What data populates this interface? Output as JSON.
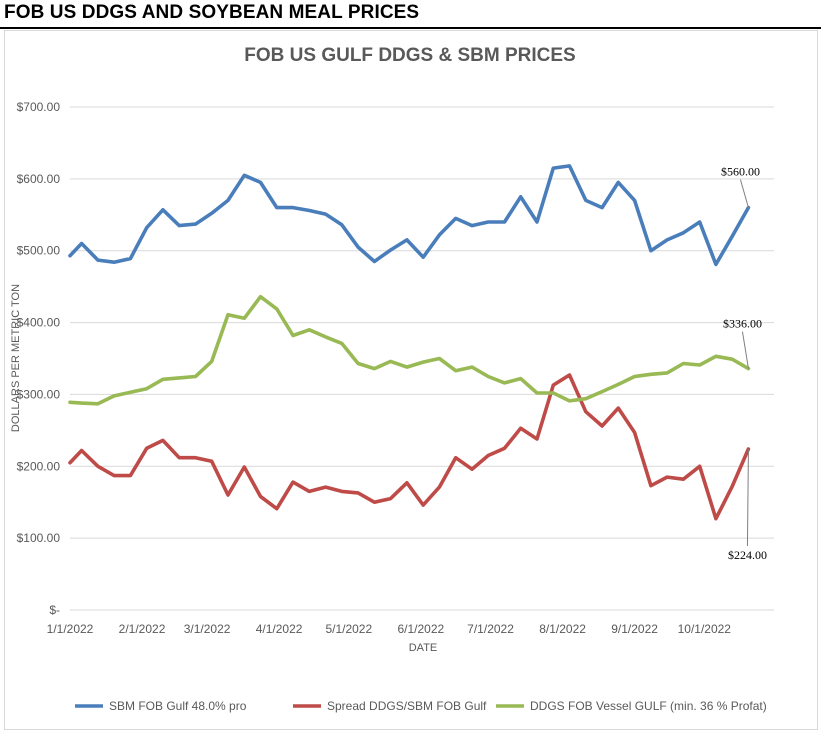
{
  "page": {
    "heading": "FOB US DDGS AND SOYBEAN MEAL PRICES"
  },
  "chart_data": {
    "type": "line",
    "title": "FOB US GULF DDGS & SBM PRICES",
    "xlabel": "DATE",
    "ylabel": "DOLLARS PER METRIC TON",
    "ylim": [
      0,
      700
    ],
    "y_ticks": [
      0,
      100,
      200,
      300,
      400,
      500,
      600,
      700
    ],
    "y_tick_labels": [
      "$-",
      "$100.00",
      "$200.00",
      "$300.00",
      "$400.00",
      "$500.00",
      "$600.00",
      "$700.00"
    ],
    "x_range": [
      "2022-01-01",
      "2022-10-31"
    ],
    "x_ticks": [
      "2022-01-01",
      "2022-02-01",
      "2022-03-01",
      "2022-04-01",
      "2022-05-01",
      "2022-06-01",
      "2022-07-01",
      "2022-08-01",
      "2022-09-01",
      "2022-10-01"
    ],
    "x_tick_labels": [
      "1/1/2022",
      "2/1/2022",
      "3/1/2022",
      "4/1/2022",
      "5/1/2022",
      "6/1/2022",
      "7/1/2022",
      "8/1/2022",
      "9/1/2022",
      "10/1/2022"
    ],
    "grid": "horizontal",
    "legend_position": "bottom",
    "series": [
      {
        "name": "SBM FOB Gulf 48.0% pro",
        "color": "#4a7ebb",
        "points": [
          [
            "2022-01-01",
            493
          ],
          [
            "2022-01-06",
            510
          ],
          [
            "2022-01-13",
            487
          ],
          [
            "2022-01-20",
            484
          ],
          [
            "2022-01-27",
            489
          ],
          [
            "2022-02-03",
            532
          ],
          [
            "2022-02-10",
            557
          ],
          [
            "2022-02-17",
            535
          ],
          [
            "2022-02-24",
            537
          ],
          [
            "2022-03-03",
            552
          ],
          [
            "2022-03-10",
            570
          ],
          [
            "2022-03-17",
            605
          ],
          [
            "2022-03-24",
            595
          ],
          [
            "2022-03-31",
            560
          ],
          [
            "2022-04-07",
            560
          ],
          [
            "2022-04-14",
            556
          ],
          [
            "2022-04-21",
            551
          ],
          [
            "2022-04-28",
            536
          ],
          [
            "2022-05-05",
            505
          ],
          [
            "2022-05-12",
            485
          ],
          [
            "2022-05-19",
            501
          ],
          [
            "2022-05-26",
            515
          ],
          [
            "2022-06-02",
            491
          ],
          [
            "2022-06-09",
            522
          ],
          [
            "2022-06-16",
            545
          ],
          [
            "2022-06-23",
            535
          ],
          [
            "2022-06-30",
            540
          ],
          [
            "2022-07-07",
            540
          ],
          [
            "2022-07-14",
            575
          ],
          [
            "2022-07-21",
            540
          ],
          [
            "2022-07-28",
            615
          ],
          [
            "2022-08-04",
            618
          ],
          [
            "2022-08-11",
            570
          ],
          [
            "2022-08-18",
            560
          ],
          [
            "2022-08-25",
            595
          ],
          [
            "2022-09-01",
            570
          ],
          [
            "2022-09-08",
            500
          ],
          [
            "2022-09-15",
            515
          ],
          [
            "2022-09-22",
            525
          ],
          [
            "2022-09-29",
            540
          ],
          [
            "2022-10-06",
            481
          ],
          [
            "2022-10-13",
            520
          ],
          [
            "2022-10-20",
            560
          ]
        ]
      },
      {
        "name": "Spread DDGS/SBM FOB Gulf",
        "color": "#be4b48",
        "points": [
          [
            "2022-01-01",
            205
          ],
          [
            "2022-01-06",
            222
          ],
          [
            "2022-01-13",
            200
          ],
          [
            "2022-01-20",
            187
          ],
          [
            "2022-01-27",
            187
          ],
          [
            "2022-02-03",
            225
          ],
          [
            "2022-02-10",
            236
          ],
          [
            "2022-02-17",
            212
          ],
          [
            "2022-02-24",
            212
          ],
          [
            "2022-03-03",
            207
          ],
          [
            "2022-03-10",
            160
          ],
          [
            "2022-03-17",
            199
          ],
          [
            "2022-03-24",
            158
          ],
          [
            "2022-03-31",
            141
          ],
          [
            "2022-04-07",
            178
          ],
          [
            "2022-04-14",
            165
          ],
          [
            "2022-04-21",
            171
          ],
          [
            "2022-04-28",
            165
          ],
          [
            "2022-05-05",
            163
          ],
          [
            "2022-05-12",
            150
          ],
          [
            "2022-05-19",
            155
          ],
          [
            "2022-05-26",
            177
          ],
          [
            "2022-06-02",
            146
          ],
          [
            "2022-06-09",
            171
          ],
          [
            "2022-06-16",
            212
          ],
          [
            "2022-06-23",
            196
          ],
          [
            "2022-06-30",
            215
          ],
          [
            "2022-07-07",
            225
          ],
          [
            "2022-07-14",
            253
          ],
          [
            "2022-07-21",
            238
          ],
          [
            "2022-07-28",
            313
          ],
          [
            "2022-08-04",
            327
          ],
          [
            "2022-08-11",
            276
          ],
          [
            "2022-08-18",
            256
          ],
          [
            "2022-08-25",
            281
          ],
          [
            "2022-09-01",
            247
          ],
          [
            "2022-09-08",
            173
          ],
          [
            "2022-09-15",
            185
          ],
          [
            "2022-09-22",
            182
          ],
          [
            "2022-09-29",
            200
          ],
          [
            "2022-10-06",
            127
          ],
          [
            "2022-10-13",
            172
          ],
          [
            "2022-10-20",
            224
          ]
        ]
      },
      {
        "name": "DDGS FOB Vessel GULF  (min. 36 % Profat)",
        "color": "#98b954",
        "points": [
          [
            "2022-01-01",
            289
          ],
          [
            "2022-01-06",
            288
          ],
          [
            "2022-01-13",
            287
          ],
          [
            "2022-01-20",
            298
          ],
          [
            "2022-01-27",
            303
          ],
          [
            "2022-02-03",
            308
          ],
          [
            "2022-02-10",
            321
          ],
          [
            "2022-02-17",
            323
          ],
          [
            "2022-02-24",
            325
          ],
          [
            "2022-03-03",
            346
          ],
          [
            "2022-03-10",
            411
          ],
          [
            "2022-03-17",
            406
          ],
          [
            "2022-03-24",
            436
          ],
          [
            "2022-03-31",
            419
          ],
          [
            "2022-04-07",
            382
          ],
          [
            "2022-04-14",
            390
          ],
          [
            "2022-04-21",
            380
          ],
          [
            "2022-04-28",
            371
          ],
          [
            "2022-05-05",
            343
          ],
          [
            "2022-05-12",
            336
          ],
          [
            "2022-05-19",
            346
          ],
          [
            "2022-05-26",
            338
          ],
          [
            "2022-06-02",
            345
          ],
          [
            "2022-06-09",
            350
          ],
          [
            "2022-06-16",
            333
          ],
          [
            "2022-06-23",
            338
          ],
          [
            "2022-06-30",
            325
          ],
          [
            "2022-07-07",
            316
          ],
          [
            "2022-07-14",
            322
          ],
          [
            "2022-07-21",
            302
          ],
          [
            "2022-07-28",
            302
          ],
          [
            "2022-08-04",
            291
          ],
          [
            "2022-08-11",
            294
          ],
          [
            "2022-08-18",
            304
          ],
          [
            "2022-08-25",
            314
          ],
          [
            "2022-09-01",
            325
          ],
          [
            "2022-09-08",
            328
          ],
          [
            "2022-09-15",
            330
          ],
          [
            "2022-09-22",
            343
          ],
          [
            "2022-09-29",
            341
          ],
          [
            "2022-10-06",
            353
          ],
          [
            "2022-10-13",
            349
          ],
          [
            "2022-10-20",
            336
          ]
        ]
      }
    ],
    "annotations": [
      {
        "series": 0,
        "text": "$560.00"
      },
      {
        "series": 2,
        "text": "$336.00"
      },
      {
        "series": 1,
        "text": "$224.00"
      }
    ]
  }
}
